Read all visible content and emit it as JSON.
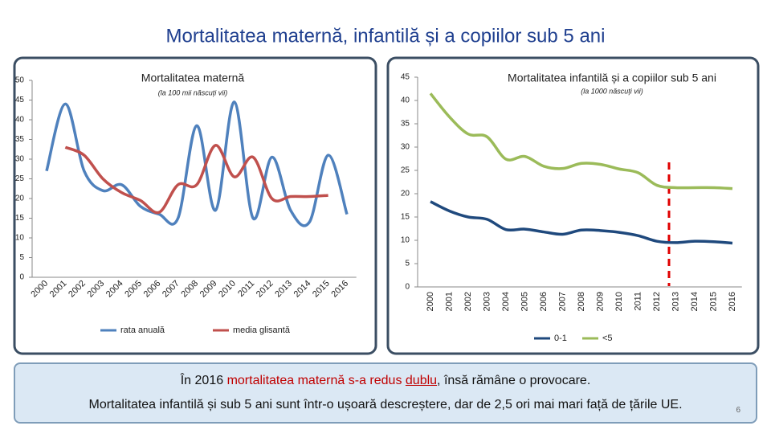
{
  "slide": {
    "title": "Mortalitatea maternă, infantilă și a copiilor sub 5 ani",
    "note_line1": [
      "În 2016 ",
      "mortalitatea maternă s-a redus ",
      "dublu",
      ", însă rămâne o provocare."
    ],
    "note_line2": "Mortalitatea infantilă și sub 5 ani sunt într-o ușoară descreștere, dar de 2,5 ori mai mari față de țările UE.",
    "page_number": "6"
  },
  "chart_data": [
    {
      "type": "line",
      "title": "Mortalitatea maternă",
      "subtitle": "(la 100 mii născuți vii)",
      "categories": [
        "2000",
        "2001",
        "2002",
        "2003",
        "2004",
        "2005",
        "2006",
        "2007",
        "2008",
        "2009",
        "2010",
        "2011",
        "2012",
        "2013",
        "2014",
        "2015",
        "2016"
      ],
      "series": [
        {
          "name": "rata anuală",
          "color": "#4f81bd",
          "values": [
            27,
            44,
            27,
            22,
            23.5,
            18,
            16,
            15,
            38.5,
            17,
            44.5,
            15,
            30.5,
            17,
            14,
            31,
            16
          ]
        },
        {
          "name": "media glisantă",
          "color": "#c0504d",
          "values": [
            null,
            33,
            31,
            25,
            21.5,
            19.5,
            16.5,
            23.5,
            23.5,
            33.5,
            25.5,
            30.5,
            20,
            20.5,
            20.5,
            20.8,
            null
          ]
        }
      ],
      "ylim": [
        0,
        50
      ],
      "yticks": [
        0,
        5,
        10,
        15,
        20,
        25,
        30,
        35,
        40,
        45,
        50
      ]
    },
    {
      "type": "line",
      "title": "Mortalitatea infantilă și a copiilor sub 5 ani",
      "subtitle": "(la 1000 născuți vii)",
      "categories": [
        "2000",
        "2001",
        "2002",
        "2003",
        "2004",
        "2005",
        "2006",
        "2007",
        "2008",
        "2009",
        "2010",
        "2011",
        "2012",
        "2013",
        "2014",
        "2015",
        "2016"
      ],
      "series": [
        {
          "name": "0-1",
          "color": "#1f497d",
          "values": [
            18.3,
            16.3,
            15,
            14.5,
            12.3,
            12.4,
            11.8,
            11.3,
            12.2,
            12.1,
            11.7,
            11,
            9.8,
            9.5,
            9.8,
            9.7,
            9.4
          ]
        },
        {
          "name": "<5",
          "color": "#9bbb59",
          "values": [
            41.5,
            36.5,
            32.8,
            32.2,
            27.4,
            28,
            25.9,
            25.4,
            26.5,
            26.3,
            25.3,
            24.5,
            21.8,
            21.3,
            21.3,
            21.3,
            21.1
          ]
        }
      ],
      "ylim": [
        0,
        45
      ],
      "yticks": [
        0,
        5,
        10,
        15,
        20,
        25,
        30,
        35,
        40,
        45
      ]
    }
  ]
}
